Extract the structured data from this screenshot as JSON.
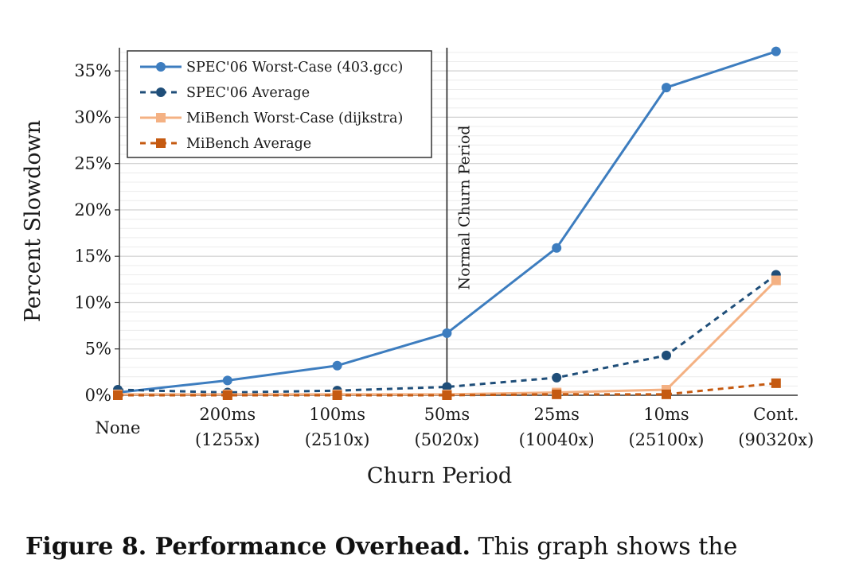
{
  "chart_data": {
    "type": "line",
    "xlabel": "Churn Period",
    "ylabel": "Percent Slowdown",
    "categories": [
      {
        "label": "None",
        "sub": ""
      },
      {
        "label": "200ms",
        "sub": "(1255x)"
      },
      {
        "label": "100ms",
        "sub": "(2510x)"
      },
      {
        "label": "50ms",
        "sub": "(5020x)"
      },
      {
        "label": "25ms",
        "sub": "(10040x)"
      },
      {
        "label": "10ms",
        "sub": "(25100x)"
      },
      {
        "label": "Cont.",
        "sub": "(90320x)"
      }
    ],
    "ylim": [
      0,
      37.5
    ],
    "yticks": [
      0,
      5,
      10,
      15,
      20,
      25,
      30,
      35
    ],
    "ytick_labels": [
      "0%",
      "5%",
      "10%",
      "15%",
      "20%",
      "25%",
      "30%",
      "35%"
    ],
    "grid": true,
    "legend_position": "top-left",
    "series": [
      {
        "name": "SPEC'06 Worst-Case (403.gcc)",
        "color": "#3d7dbf",
        "dash": "solid",
        "marker": "circle",
        "values": [
          0.3,
          1.6,
          3.2,
          6.7,
          15.9,
          33.2,
          37.1
        ]
      },
      {
        "name": "SPEC'06 Average",
        "color": "#1f4e79",
        "dash": "dashed",
        "marker": "circle",
        "values": [
          0.6,
          0.3,
          0.5,
          0.9,
          1.9,
          4.3,
          13.0
        ]
      },
      {
        "name": "MiBench Worst-Case (dijkstra)",
        "color": "#f4b183",
        "dash": "solid",
        "marker": "square",
        "values": [
          0.1,
          0.1,
          0.1,
          0.1,
          0.3,
          0.6,
          12.4
        ]
      },
      {
        "name": "MiBench Average",
        "color": "#c55a11",
        "dash": "dashed",
        "marker": "square",
        "values": [
          0.0,
          0.0,
          0.0,
          0.0,
          0.1,
          0.1,
          1.3
        ]
      }
    ],
    "annotations": [
      {
        "text": "Normal Churn Period",
        "at_category": 3
      }
    ]
  },
  "caption": {
    "bold": "Figure 8. Performance Overhead.",
    "rest": " This graph shows the"
  }
}
